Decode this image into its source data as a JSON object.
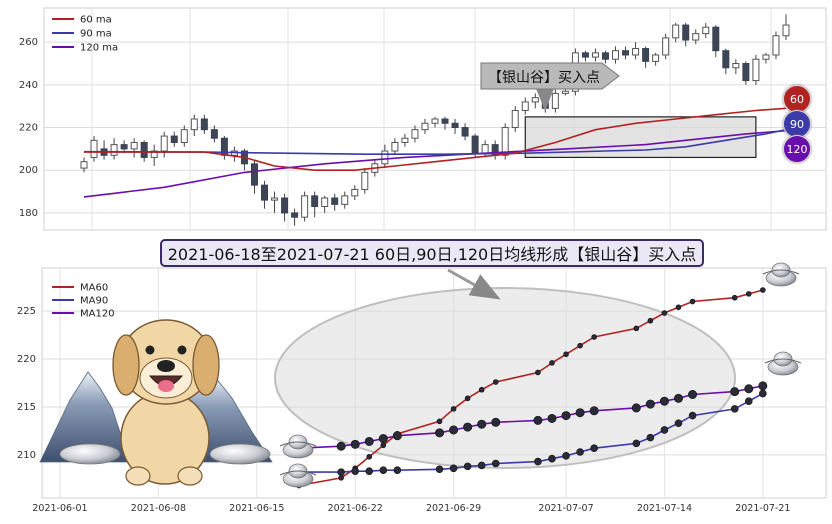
{
  "chart_data": [
    {
      "type": "candlestick",
      "title": "",
      "xlabel": "",
      "ylabel": "",
      "ylim": [
        172,
        276
      ],
      "yticks": [
        180,
        200,
        220,
        240,
        260
      ],
      "grid": true,
      "legend_placement": "top-left",
      "legend": [
        {
          "name": "60 ma",
          "color": "#b22222"
        },
        {
          "name": "90 ma",
          "color": "#3a3aa8"
        },
        {
          "name": "120 ma",
          "color": "#6a0dad"
        }
      ],
      "candles": [
        [
          201,
          204,
          199,
          206
        ],
        [
          206,
          214,
          204,
          216
        ],
        [
          210,
          207,
          205,
          214
        ],
        [
          207,
          212,
          205,
          215
        ],
        [
          212,
          210,
          208,
          214
        ],
        [
          210,
          213,
          206,
          215
        ],
        [
          213,
          206,
          204,
          214
        ],
        [
          206,
          209,
          202,
          212
        ],
        [
          209,
          216,
          206,
          218
        ],
        [
          216,
          213,
          211,
          218
        ],
        [
          213,
          219,
          211,
          221
        ],
        [
          219,
          224,
          216,
          226
        ],
        [
          224,
          219,
          217,
          226
        ],
        [
          219,
          215,
          213,
          221
        ],
        [
          215,
          207,
          205,
          216
        ],
        [
          207,
          209,
          204,
          211
        ],
        [
          209,
          203,
          200,
          210
        ],
        [
          203,
          193,
          189,
          205
        ],
        [
          193,
          186,
          182,
          195
        ],
        [
          186,
          187,
          180,
          190
        ],
        [
          187,
          180,
          176,
          189
        ],
        [
          180,
          178,
          174,
          182
        ],
        [
          178,
          188,
          176,
          190
        ],
        [
          188,
          183,
          178,
          190
        ],
        [
          183,
          187,
          180,
          188
        ],
        [
          187,
          184,
          181,
          189
        ],
        [
          184,
          188,
          182,
          190
        ],
        [
          188,
          191,
          186,
          193
        ],
        [
          191,
          199,
          189,
          201
        ],
        [
          199,
          203,
          197,
          205
        ],
        [
          203,
          209,
          201,
          212
        ],
        [
          209,
          213,
          207,
          215
        ],
        [
          213,
          215,
          211,
          217
        ],
        [
          215,
          219,
          213,
          221
        ],
        [
          219,
          222,
          217,
          224
        ],
        [
          222,
          224,
          220,
          225
        ],
        [
          224,
          222,
          219,
          225
        ],
        [
          222,
          220,
          217,
          224
        ],
        [
          220,
          216,
          214,
          222
        ],
        [
          216,
          208,
          206,
          217
        ],
        [
          208,
          212,
          206,
          214
        ],
        [
          212,
          207,
          205,
          214
        ],
        [
          207,
          220,
          205,
          222
        ],
        [
          220,
          228,
          218,
          230
        ],
        [
          228,
          232,
          226,
          234
        ],
        [
          232,
          234,
          229,
          236
        ],
        [
          234,
          229,
          227,
          235
        ],
        [
          229,
          236,
          227,
          238
        ],
        [
          236,
          237,
          235,
          238
        ],
        [
          237,
          255,
          235,
          257
        ],
        [
          255,
          253,
          251,
          256
        ],
        [
          253,
          255,
          251,
          257
        ],
        [
          255,
          252,
          250,
          256
        ],
        [
          252,
          256,
          250,
          258
        ],
        [
          256,
          254,
          252,
          258
        ],
        [
          254,
          257,
          252,
          260
        ],
        [
          257,
          251,
          248,
          258
        ],
        [
          251,
          254,
          249,
          255
        ],
        [
          254,
          262,
          252,
          264
        ],
        [
          262,
          268,
          260,
          269
        ],
        [
          268,
          261,
          258,
          269
        ],
        [
          261,
          264,
          259,
          266
        ],
        [
          264,
          267,
          262,
          269
        ],
        [
          267,
          256,
          253,
          268
        ],
        [
          256,
          248,
          245,
          257
        ],
        [
          248,
          250,
          245,
          252
        ],
        [
          250,
          242,
          240,
          251
        ],
        [
          242,
          252,
          240,
          254
        ],
        [
          252,
          254,
          250,
          255
        ],
        [
          254,
          263,
          252,
          265
        ],
        [
          263,
          268,
          261,
          273
        ]
      ],
      "ma60": [
        [
          0,
          208.5
        ],
        [
          12,
          208.5
        ],
        [
          16,
          206
        ],
        [
          19,
          202
        ],
        [
          23,
          200
        ],
        [
          27,
          200
        ],
        [
          31,
          202
        ],
        [
          35,
          204
        ],
        [
          39,
          206
        ],
        [
          43,
          208
        ],
        [
          47,
          213
        ],
        [
          51,
          219
        ],
        [
          55,
          222
        ],
        [
          59,
          224
        ],
        [
          63,
          226
        ],
        [
          67,
          228
        ],
        [
          70,
          229
        ]
      ],
      "ma90": [
        [
          0,
          208.7
        ],
        [
          12,
          208.5
        ],
        [
          20,
          208
        ],
        [
          28,
          207.5
        ],
        [
          36,
          207.5
        ],
        [
          44,
          208
        ],
        [
          52,
          209
        ],
        [
          56,
          209.5
        ],
        [
          60,
          211
        ],
        [
          64,
          214
        ],
        [
          68,
          217
        ],
        [
          70,
          219
        ]
      ],
      "ma120": [
        [
          0,
          187.5
        ],
        [
          8,
          192
        ],
        [
          16,
          199
        ],
        [
          24,
          203
        ],
        [
          32,
          206
        ],
        [
          40,
          208
        ],
        [
          48,
          210
        ],
        [
          56,
          212
        ],
        [
          62,
          215
        ],
        [
          66,
          217
        ],
        [
          70,
          218.5
        ]
      ],
      "annotation_box": {
        "from_index": 44,
        "to_index": 67,
        "y_low": 206,
        "y_high": 225
      },
      "callout": "【银山谷】买入点",
      "badges": [
        {
          "label": "60",
          "color": "#b22222"
        },
        {
          "label": "90",
          "color": "#3a3aa8"
        },
        {
          "label": "120",
          "color": "#6a0dad"
        }
      ]
    },
    {
      "type": "line",
      "title": "2021-06-18至2021-07-21 60日,90日,120日均线形成【银山谷】买入点",
      "xlabel": "",
      "ylabel": "",
      "ylim": [
        205.5,
        229.5
      ],
      "yticks": [
        210,
        215,
        220,
        225
      ],
      "x_range": [
        "2021-06-01",
        "2021-07-24"
      ],
      "xticks": [
        "2021-06-01",
        "2021-06-08",
        "2021-06-15",
        "2021-06-22",
        "2021-06-29",
        "2021-07-07",
        "2021-07-14",
        "2021-07-21"
      ],
      "grid": true,
      "legend_placement": "top-left",
      "x": [
        "2021-06-18",
        "2021-06-21",
        "2021-06-22",
        "2021-06-23",
        "2021-06-24",
        "2021-06-25",
        "2021-06-28",
        "2021-06-29",
        "2021-06-30",
        "2021-07-01",
        "2021-07-02",
        "2021-07-05",
        "2021-07-06",
        "2021-07-07",
        "2021-07-08",
        "2021-07-09",
        "2021-07-12",
        "2021-07-13",
        "2021-07-14",
        "2021-07-15",
        "2021-07-16",
        "2021-07-19",
        "2021-07-20",
        "2021-07-21"
      ],
      "series": [
        {
          "name": "MA60",
          "color": "#b22222",
          "values": [
            206.8,
            207.6,
            208.6,
            209.8,
            211.0,
            212.2,
            213.5,
            214.8,
            215.9,
            216.8,
            217.6,
            218.6,
            219.6,
            220.5,
            221.4,
            222.3,
            223.2,
            224.0,
            224.8,
            225.4,
            226.0,
            226.4,
            226.8,
            227.2
          ]
        },
        {
          "name": "MA90",
          "color": "#3a3aa8",
          "values": [
            208.2,
            208.2,
            208.3,
            208.3,
            208.4,
            208.4,
            208.5,
            208.6,
            208.8,
            208.9,
            209.1,
            209.3,
            209.6,
            209.9,
            210.3,
            210.7,
            211.2,
            211.8,
            212.6,
            213.3,
            214.1,
            214.8,
            215.6,
            216.4
          ]
        },
        {
          "name": "MA120",
          "color": "#6a0dad",
          "values": [
            210.7,
            210.9,
            211.1,
            211.4,
            211.7,
            212.0,
            212.3,
            212.6,
            212.9,
            213.2,
            213.4,
            213.6,
            213.8,
            214.1,
            214.4,
            214.6,
            214.9,
            215.3,
            215.6,
            215.9,
            216.3,
            216.6,
            216.9,
            217.2
          ]
        }
      ]
    }
  ]
}
